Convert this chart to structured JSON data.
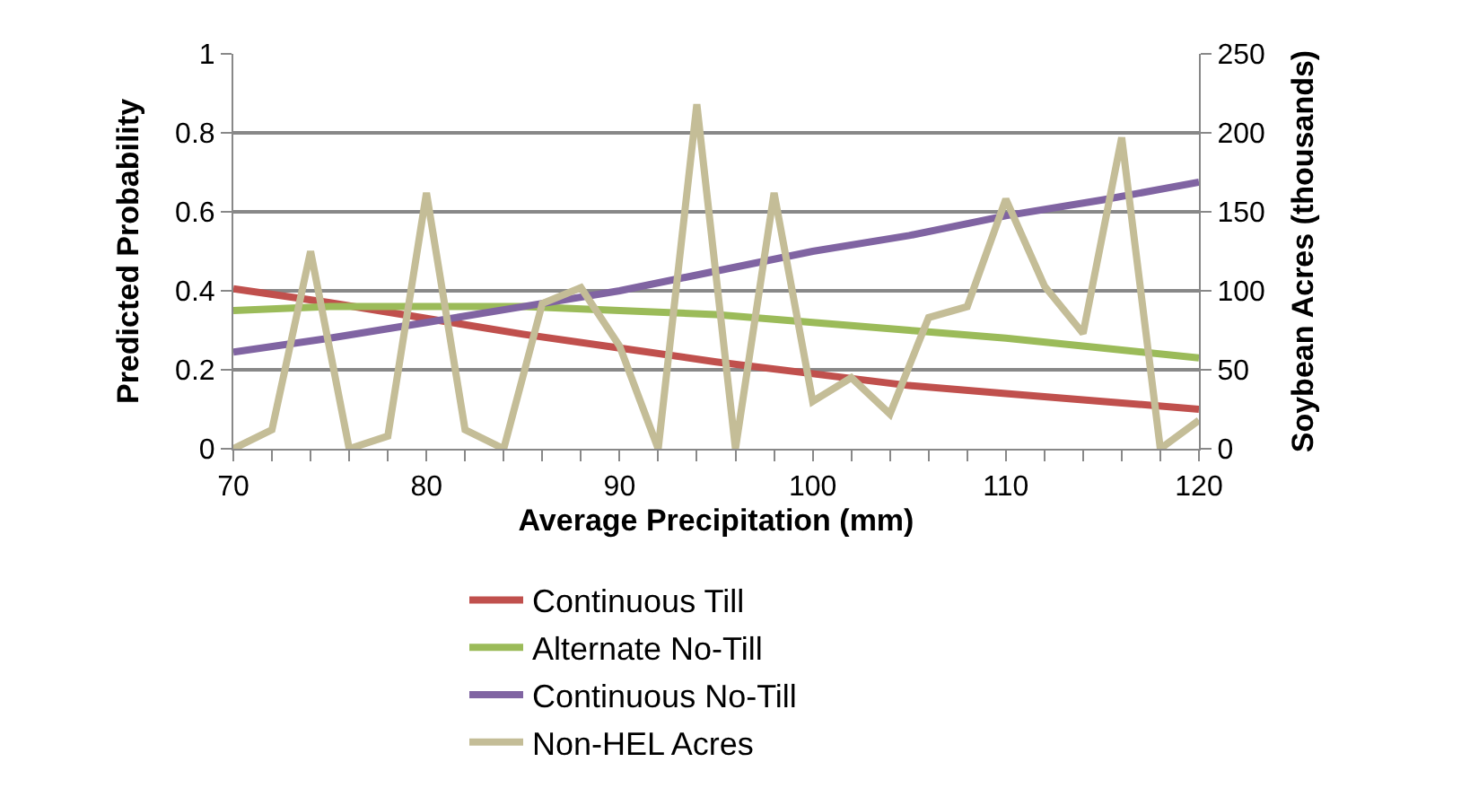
{
  "chart_data": {
    "type": "line",
    "xlabel": "Average Precipitation (mm)",
    "ylabel": "Predicted Probability",
    "y2label": "Soybean Acres (thousands)",
    "xlim": [
      70,
      120
    ],
    "xticks": [
      70,
      80,
      90,
      100,
      110,
      120
    ],
    "ylim": [
      0,
      1
    ],
    "yticks": [
      0,
      0.2,
      0.4,
      0.6,
      0.8,
      1
    ],
    "y2lim": [
      0,
      250
    ],
    "y2ticks": [
      0,
      50,
      100,
      150,
      200,
      250
    ],
    "grid": "y",
    "legend": "bottom",
    "marker": "none",
    "line_style": "solid",
    "series": [
      {
        "name": "Continuous Till",
        "color": "#c0504d",
        "x": [
          70,
          75,
          80,
          85,
          90,
          95,
          100,
          105,
          110,
          115,
          120
        ],
        "values": [
          0.405,
          0.37,
          0.33,
          0.29,
          0.255,
          0.22,
          0.19,
          0.16,
          0.14,
          0.12,
          0.1
        ]
      },
      {
        "name": "Alternate No-Till",
        "color": "#9bbb59",
        "x": [
          70,
          75,
          80,
          85,
          90,
          95,
          100,
          105,
          110,
          115,
          120
        ],
        "values": [
          0.35,
          0.36,
          0.36,
          0.36,
          0.35,
          0.34,
          0.32,
          0.3,
          0.28,
          0.255,
          0.23
        ]
      },
      {
        "name": "Continuous No-Till",
        "color": "#8064a2",
        "x": [
          70,
          75,
          80,
          85,
          90,
          95,
          100,
          105,
          110,
          115,
          120
        ],
        "values": [
          0.245,
          0.28,
          0.32,
          0.36,
          0.4,
          0.45,
          0.5,
          0.54,
          0.59,
          0.63,
          0.675
        ]
      },
      {
        "name": "Non-HEL Acres",
        "color": "#c4bd97",
        "axis": "y2",
        "x": [
          70,
          72,
          74,
          76,
          78,
          80,
          82,
          84,
          86,
          88,
          90,
          92,
          94,
          96,
          98,
          100,
          102,
          104,
          106,
          108,
          110,
          112,
          114,
          116,
          118,
          120
        ],
        "values": [
          0,
          12,
          125,
          0,
          8,
          162,
          12,
          0,
          92,
          102,
          65,
          0,
          218,
          0,
          162,
          30,
          45,
          22,
          83,
          90,
          158,
          103,
          73,
          197,
          0,
          18
        ]
      }
    ]
  }
}
